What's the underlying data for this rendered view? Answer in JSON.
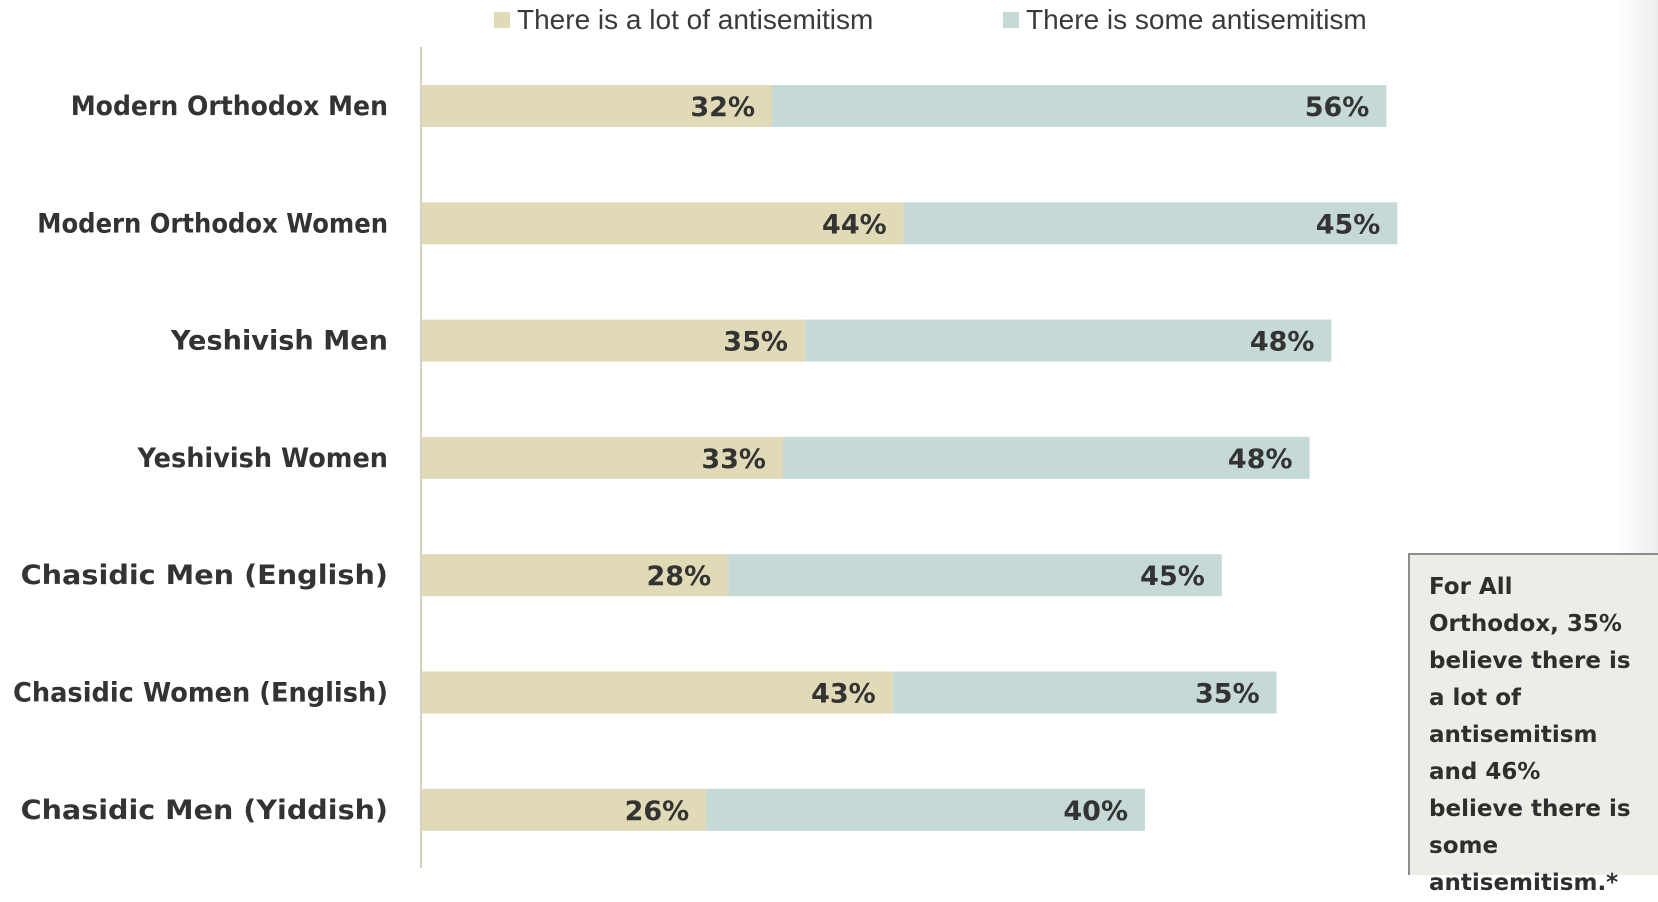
{
  "legend": {
    "lot_label": "There is a lot of antisemitism",
    "some_label": "There is some antisemitism"
  },
  "colors": {
    "lot": "#e0dab6",
    "some": "#c5d9d7",
    "axis": "#d6d2c2",
    "label_text": "#333333"
  },
  "chart_data": {
    "type": "bar",
    "orientation": "horizontal",
    "stacked": true,
    "categories": [
      "Modern Orthodox Men",
      "Modern Orthodox Women",
      "Yeshivish Men",
      "Yeshivish Women",
      "Chasidic Men (English)",
      "Chasidic Women (English)",
      "Chasidic Men (Yiddish)"
    ],
    "series": [
      {
        "name": "There is a lot of antisemitism",
        "values": [
          32,
          44,
          35,
          33,
          28,
          43,
          26
        ],
        "labels": [
          "32%",
          "44%",
          "35%",
          "33%",
          "28%",
          "43%",
          "26%"
        ]
      },
      {
        "name": "There is some antisemitism",
        "values": [
          56,
          45,
          48,
          48,
          45,
          35,
          40
        ],
        "labels": [
          "56%",
          "45%",
          "48%",
          "48%",
          "45%",
          "35%",
          "40%"
        ]
      }
    ],
    "xlim": [
      0,
      100
    ],
    "grid": false,
    "legend_position": "top"
  },
  "callout": {
    "text": "For All Orthodox, 35% believe there is a lot of antisemitism and 46% believe there is some antisemitism.*"
  }
}
